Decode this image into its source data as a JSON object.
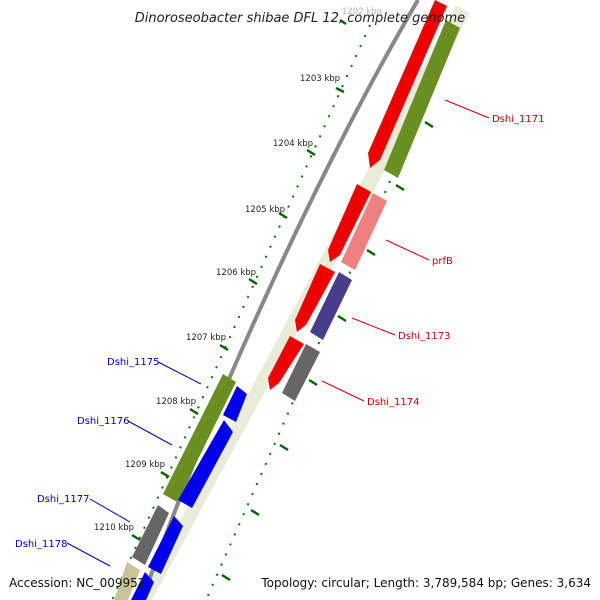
{
  "title": "Dinoroseobacter shibae DFL 12, complete genome",
  "footer": {
    "accession": "Accession: NC_009952",
    "topology": "Topology: circular; Length: 3,789,584 bp; Genes: 3,634"
  },
  "ticks": [
    "1202 kbp",
    "1203 kbp",
    "1204 kbp",
    "1205 kbp",
    "1206 kbp",
    "1207 kbp",
    "1208 kbp",
    "1209 kbp",
    "1210 kbp"
  ],
  "gene_labels": {
    "dshi_1171": "Dshi_1171",
    "prfb": "prfB",
    "dshi_1173": "Dshi_1173",
    "dshi_1174": "Dshi_1174",
    "dshi_1175": "Dshi_1175",
    "dshi_1176": "Dshi_1176",
    "dshi_1177": "Dshi_1177",
    "dshi_1178": "Dshi_1178"
  },
  "colors": {
    "forward_label": "#cc0000",
    "reverse_label": "#0000bb",
    "cds_red": "#ee0000",
    "cds_olive": "#6b8e23",
    "cds_blue": "#0000ee",
    "cds_pink": "#f08080",
    "cds_purple": "#483d8b",
    "cds_gray": "#666666",
    "backbone": "#888888",
    "gc_dots": "#007700"
  }
}
